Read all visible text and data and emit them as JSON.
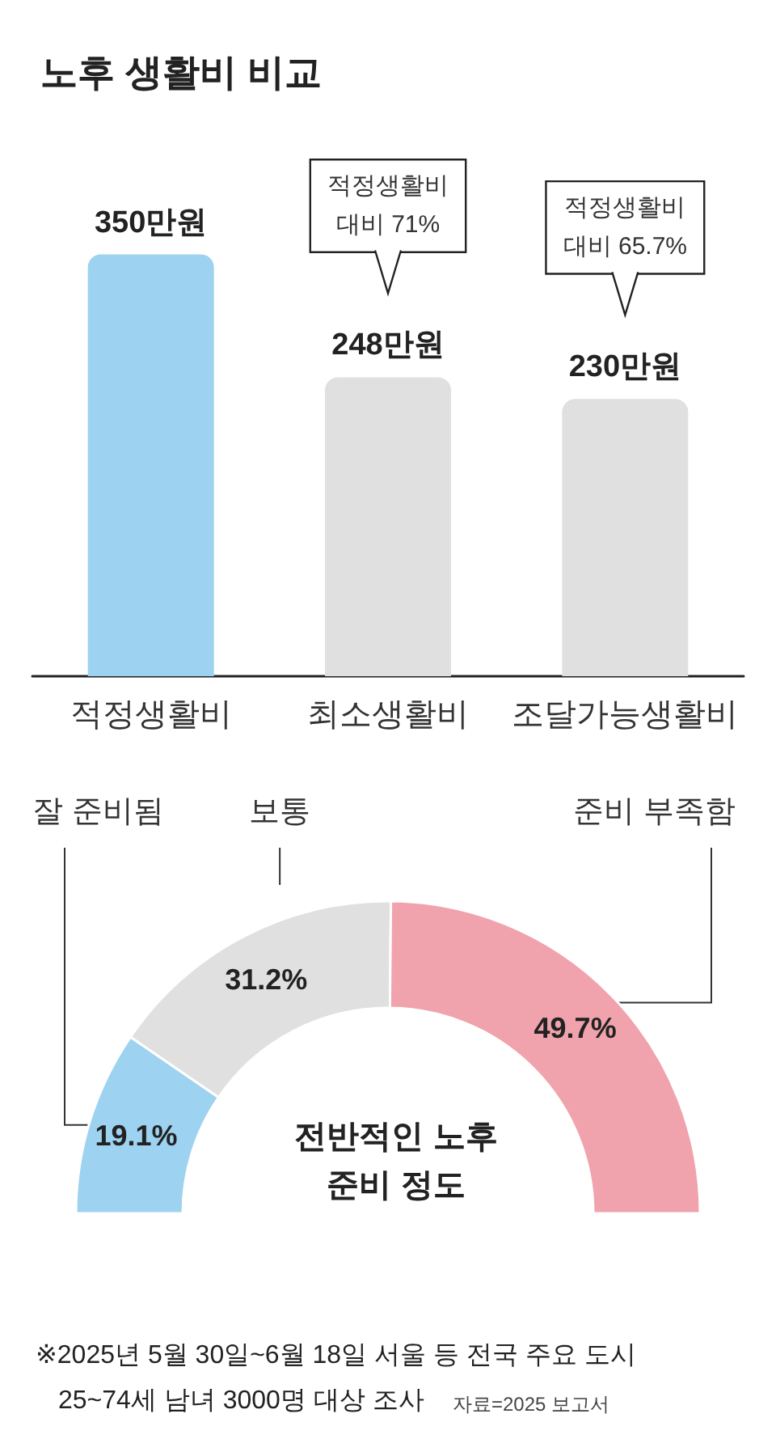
{
  "chart_data": [
    {
      "type": "bar",
      "title": "노후 생활비 비교",
      "categories": [
        "적정생활비",
        "최소생활비",
        "조달가능생활비"
      ],
      "values": [
        350,
        248,
        230
      ],
      "colors": [
        "#9dd2f0",
        "#e0e0e0",
        "#e0e0e0"
      ],
      "value_labels": [
        "350만원",
        "248만원",
        "230만원"
      ],
      "annotations": [
        "적정생활비\n대비 71%",
        "적정생활비\n대비 65.7%"
      ]
    },
    {
      "type": "donut",
      "title": "전반적인 노후\n준비 정도",
      "categories": [
        "잘 준비됨",
        "보통",
        "준비 부족함"
      ],
      "values": [
        19.1,
        31.2,
        49.7
      ],
      "colors": [
        "#9dd2f0",
        "#e0e0e0",
        "#f0a3ad"
      ],
      "value_labels": [
        "19.1%",
        "31.2%",
        "49.7%"
      ],
      "annotations": [
        "※2025년 5월 30일~6월 18일 서울 등 전국 주요 도시",
        "25~74세 남녀 3000명 대상 조사",
        "자료=2025 보고서"
      ]
    }
  ]
}
